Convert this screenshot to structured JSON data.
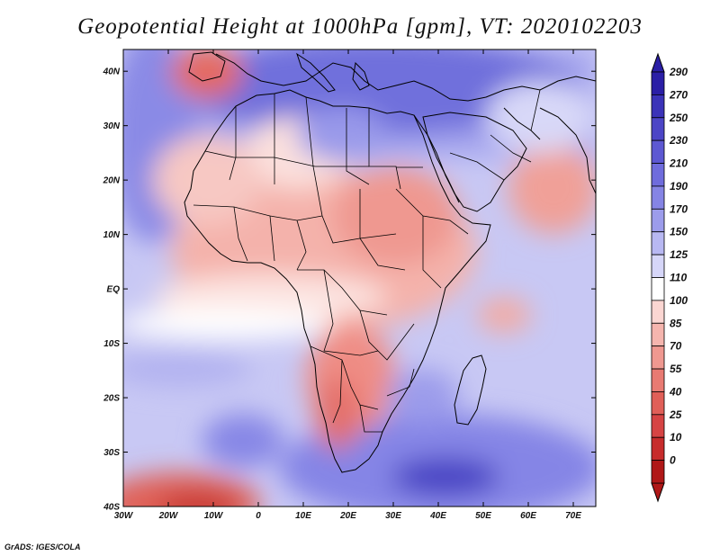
{
  "title": "Geopotential Height at 1000hPa [gpm], VT: 2020102203",
  "credit": "GrADS: IGES/COLA",
  "lon_labels": [
    "30W",
    "20W",
    "10W",
    "0",
    "10E",
    "20E",
    "30E",
    "40E",
    "50E",
    "60E",
    "70E"
  ],
  "lat_labels": [
    "40N",
    "30N",
    "20N",
    "10N",
    "EQ",
    "10S",
    "20S",
    "30S",
    "40S"
  ],
  "lon_values": [
    -30,
    -20,
    -10,
    0,
    10,
    20,
    30,
    40,
    50,
    60,
    70
  ],
  "lat_values": [
    40,
    30,
    20,
    10,
    0,
    -10,
    -20,
    -30,
    -40
  ],
  "lon_range": [
    -30,
    75
  ],
  "lat_range": [
    -40,
    44
  ],
  "colorbar": {
    "labels": [
      "290",
      "270",
      "250",
      "230",
      "210",
      "190",
      "170",
      "150",
      "125",
      "110",
      "100",
      "85",
      "70",
      "55",
      "40",
      "25",
      "10",
      "0"
    ],
    "colors": [
      "#2b1fa6",
      "#3b33b8",
      "#4c45c6",
      "#5d58d2",
      "#6f6cdc",
      "#8584e4",
      "#9c9ceb",
      "#b8b8f2",
      "#d6d6f8",
      "#ffffff",
      "#fbd6d2",
      "#f5b5ae",
      "#ef9890",
      "#e87a72",
      "#e05f58",
      "#d64444",
      "#c72c2c",
      "#b01818"
    ]
  },
  "color_scale": {
    "background": "#b8b8f2",
    "land": "#f5b5ae"
  }
}
